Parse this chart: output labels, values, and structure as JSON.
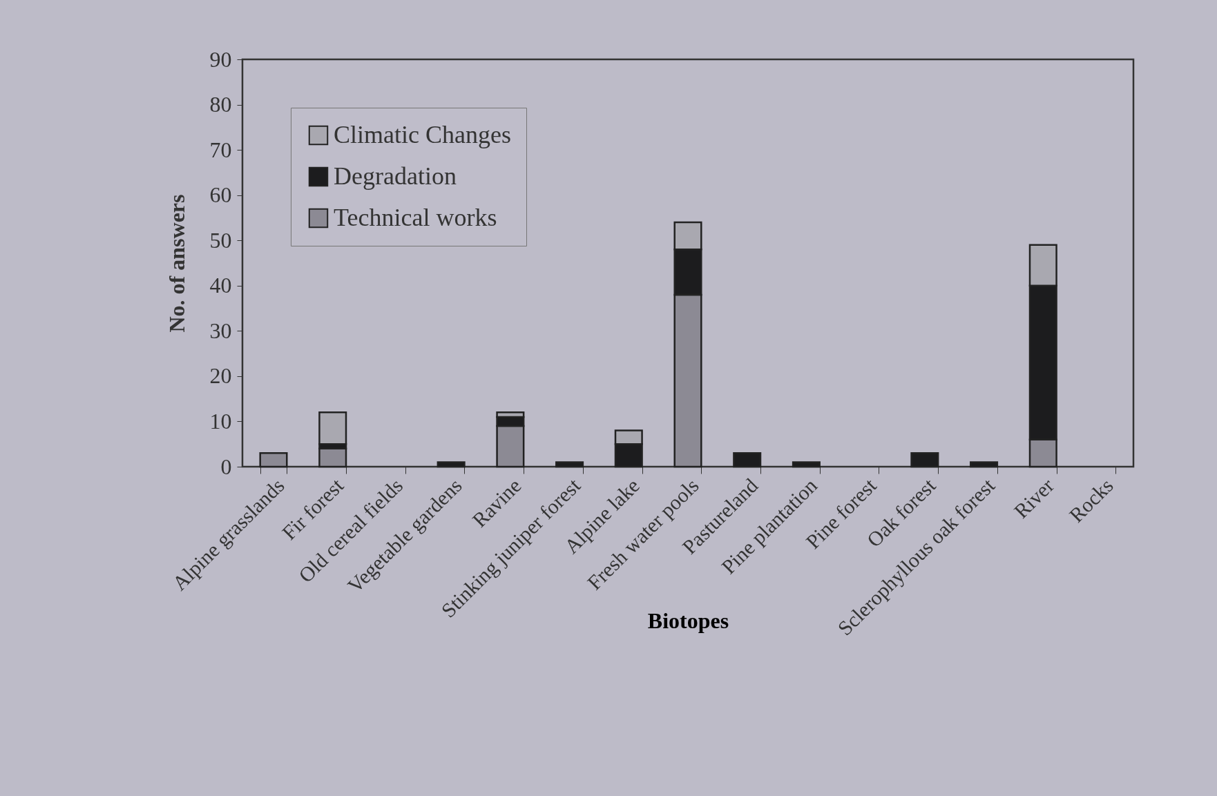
{
  "chart_data": {
    "type": "bar",
    "xlabel": "Biotopes",
    "ylabel": "No. of answers",
    "categories": [
      "Alpine grasslands",
      "Fir forest",
      "Old cereal fields",
      "Vegetable gardens",
      "Ravine",
      "Stinking juniper forest",
      "Alpine lake",
      "Fresh water pools",
      "Pastureland",
      "Pine plantation",
      "Pine forest",
      "Oak forest",
      "Sclerophyllous oak forest",
      "River",
      "Rocks"
    ],
    "stacked": true,
    "series": [
      {
        "name": "Technical works",
        "color": "#8c8a94",
        "values": [
          3,
          4,
          null,
          null,
          9,
          null,
          null,
          38,
          null,
          null,
          null,
          null,
          null,
          6,
          null
        ]
      },
      {
        "name": "Degradation",
        "color": "#1c1c1e",
        "values": [
          null,
          1,
          null,
          1,
          2,
          1,
          5,
          10,
          3,
          1,
          null,
          3,
          1,
          34,
          null
        ]
      },
      {
        "name": "Climatic Changes",
        "color": "#a9a8b0",
        "values": [
          null,
          7,
          null,
          null,
          1,
          null,
          3,
          6,
          null,
          null,
          null,
          null,
          null,
          9,
          null
        ]
      }
    ],
    "ylim": [
      0,
      90
    ],
    "yticks": [
      0,
      10,
      20,
      30,
      40,
      50,
      60,
      70,
      80,
      90
    ],
    "grid": false,
    "legend": "top left"
  }
}
